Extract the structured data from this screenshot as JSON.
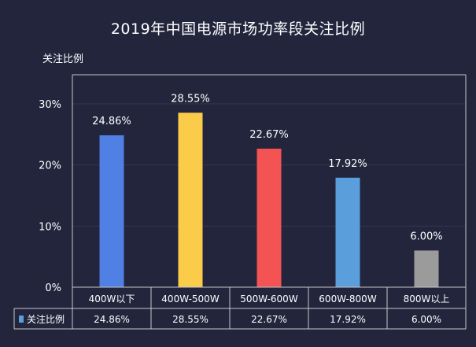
{
  "chart_data": {
    "type": "bar",
    "title": "2019年中国电源市场功率段关注比例",
    "ylabel": "关注比例",
    "categories": [
      "400W以下",
      "400W-500W",
      "500W-600W",
      "600W-800W",
      "800W以上"
    ],
    "series": [
      {
        "name": "关注比例",
        "values": [
          24.86,
          28.55,
          22.67,
          17.92,
          6.0
        ],
        "value_labels": [
          "24.86%",
          "28.55%",
          "22.67%",
          "17.92%",
          "6.00%"
        ],
        "colors": [
          "#5080e4",
          "#fbcb4a",
          "#f35352",
          "#5a9fdb",
          "#9b9b9b"
        ]
      }
    ],
    "ylim": [
      0,
      30
    ],
    "yticks": [
      0,
      10,
      20,
      30
    ],
    "ytick_labels": [
      "0%",
      "10%",
      "20%",
      "30%"
    ],
    "grid": true,
    "data_table": true,
    "legend_color": "#5a9fdb"
  },
  "colors": {
    "background": "#23253d",
    "axis": "#c8c8c8",
    "grid": "#34374f"
  }
}
